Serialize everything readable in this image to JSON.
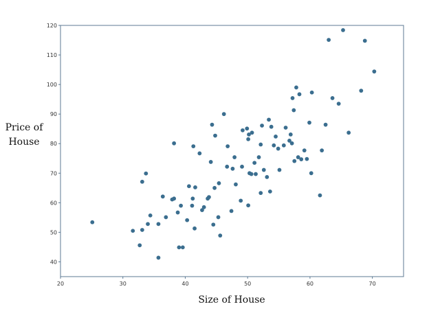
{
  "chart_data": {
    "type": "scatter",
    "title": "",
    "xlabel": "Size of House",
    "ylabel_line1": "Price of",
    "ylabel_line2": "House",
    "xlim": [
      20,
      75
    ],
    "ylim": [
      35,
      120
    ],
    "xticks": [
      20,
      30,
      40,
      50,
      60,
      70
    ],
    "yticks": [
      40,
      50,
      60,
      70,
      80,
      90,
      100,
      110,
      120
    ],
    "grid": false,
    "marker_color": "#3b6e8f",
    "axis_color": "#5c7a93",
    "points": [
      {
        "x": 25.1,
        "y": 53.4
      },
      {
        "x": 31.6,
        "y": 50.5
      },
      {
        "x": 32.7,
        "y": 45.6
      },
      {
        "x": 33.1,
        "y": 67.1
      },
      {
        "x": 33.1,
        "y": 50.8
      },
      {
        "x": 33.7,
        "y": 69.9
      },
      {
        "x": 34.0,
        "y": 52.8
      },
      {
        "x": 34.4,
        "y": 55.7
      },
      {
        "x": 35.7,
        "y": 41.4
      },
      {
        "x": 35.7,
        "y": 52.8
      },
      {
        "x": 36.4,
        "y": 62.1
      },
      {
        "x": 36.9,
        "y": 55.1
      },
      {
        "x": 37.9,
        "y": 61.1
      },
      {
        "x": 38.2,
        "y": 61.4
      },
      {
        "x": 38.2,
        "y": 80.1
      },
      {
        "x": 38.8,
        "y": 56.7
      },
      {
        "x": 39.0,
        "y": 44.9
      },
      {
        "x": 39.3,
        "y": 59.0
      },
      {
        "x": 39.6,
        "y": 44.9
      },
      {
        "x": 40.3,
        "y": 54.1
      },
      {
        "x": 40.6,
        "y": 65.6
      },
      {
        "x": 41.1,
        "y": 59.0
      },
      {
        "x": 41.2,
        "y": 61.4
      },
      {
        "x": 41.3,
        "y": 79.1
      },
      {
        "x": 41.5,
        "y": 51.3
      },
      {
        "x": 41.6,
        "y": 65.2
      },
      {
        "x": 42.3,
        "y": 76.7
      },
      {
        "x": 42.7,
        "y": 57.5
      },
      {
        "x": 43.0,
        "y": 58.5
      },
      {
        "x": 43.6,
        "y": 61.4
      },
      {
        "x": 43.8,
        "y": 61.9
      },
      {
        "x": 44.1,
        "y": 73.8
      },
      {
        "x": 44.3,
        "y": 86.4
      },
      {
        "x": 44.5,
        "y": 52.6
      },
      {
        "x": 44.7,
        "y": 65.0
      },
      {
        "x": 44.8,
        "y": 82.7
      },
      {
        "x": 45.3,
        "y": 55.1
      },
      {
        "x": 45.4,
        "y": 66.6
      },
      {
        "x": 45.6,
        "y": 48.9
      },
      {
        "x": 46.2,
        "y": 90.0
      },
      {
        "x": 46.7,
        "y": 72.2
      },
      {
        "x": 46.8,
        "y": 79.1
      },
      {
        "x": 47.4,
        "y": 57.2
      },
      {
        "x": 47.6,
        "y": 71.5
      },
      {
        "x": 47.9,
        "y": 75.4
      },
      {
        "x": 48.1,
        "y": 66.2
      },
      {
        "x": 48.9,
        "y": 60.7
      },
      {
        "x": 49.1,
        "y": 72.2
      },
      {
        "x": 49.2,
        "y": 84.5
      },
      {
        "x": 49.9,
        "y": 85.1
      },
      {
        "x": 50.1,
        "y": 81.5
      },
      {
        "x": 50.1,
        "y": 59.1
      },
      {
        "x": 50.2,
        "y": 83.1
      },
      {
        "x": 50.3,
        "y": 70.0
      },
      {
        "x": 50.6,
        "y": 69.7
      },
      {
        "x": 50.7,
        "y": 83.7
      },
      {
        "x": 51.1,
        "y": 73.5
      },
      {
        "x": 51.3,
        "y": 69.7
      },
      {
        "x": 51.8,
        "y": 75.4
      },
      {
        "x": 52.1,
        "y": 79.7
      },
      {
        "x": 52.1,
        "y": 63.3
      },
      {
        "x": 52.3,
        "y": 86.1
      },
      {
        "x": 52.6,
        "y": 71.1
      },
      {
        "x": 53.1,
        "y": 68.7
      },
      {
        "x": 53.4,
        "y": 88.1
      },
      {
        "x": 53.6,
        "y": 63.8
      },
      {
        "x": 53.8,
        "y": 85.7
      },
      {
        "x": 54.2,
        "y": 79.4
      },
      {
        "x": 54.5,
        "y": 82.4
      },
      {
        "x": 54.9,
        "y": 78.3
      },
      {
        "x": 55.1,
        "y": 71.1
      },
      {
        "x": 55.8,
        "y": 79.4
      },
      {
        "x": 56.1,
        "y": 85.4
      },
      {
        "x": 56.7,
        "y": 81.0
      },
      {
        "x": 56.9,
        "y": 83.1
      },
      {
        "x": 57.1,
        "y": 80.1
      },
      {
        "x": 57.2,
        "y": 95.4
      },
      {
        "x": 57.4,
        "y": 91.3
      },
      {
        "x": 57.5,
        "y": 74.1
      },
      {
        "x": 57.8,
        "y": 99.0
      },
      {
        "x": 58.1,
        "y": 75.4
      },
      {
        "x": 58.3,
        "y": 96.7
      },
      {
        "x": 58.6,
        "y": 74.7
      },
      {
        "x": 59.1,
        "y": 77.7
      },
      {
        "x": 59.5,
        "y": 74.8
      },
      {
        "x": 59.9,
        "y": 87.1
      },
      {
        "x": 60.2,
        "y": 70.0
      },
      {
        "x": 60.3,
        "y": 97.3
      },
      {
        "x": 61.6,
        "y": 62.5
      },
      {
        "x": 61.9,
        "y": 77.7
      },
      {
        "x": 62.5,
        "y": 86.4
      },
      {
        "x": 63.0,
        "y": 115.1
      },
      {
        "x": 63.6,
        "y": 95.4
      },
      {
        "x": 64.6,
        "y": 93.5
      },
      {
        "x": 65.3,
        "y": 118.4
      },
      {
        "x": 66.2,
        "y": 83.7
      },
      {
        "x": 68.2,
        "y": 97.9
      },
      {
        "x": 68.8,
        "y": 114.8
      },
      {
        "x": 70.3,
        "y": 104.4
      }
    ]
  }
}
